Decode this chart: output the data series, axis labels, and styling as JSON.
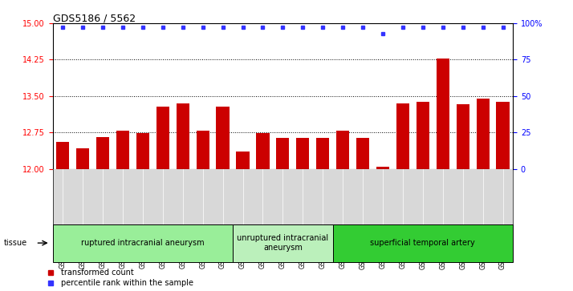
{
  "title": "GDS5186 / 5562",
  "samples": [
    "GSM1306885",
    "GSM1306886",
    "GSM1306887",
    "GSM1306888",
    "GSM1306889",
    "GSM1306890",
    "GSM1306891",
    "GSM1306892",
    "GSM1306893",
    "GSM1306894",
    "GSM1306895",
    "GSM1306896",
    "GSM1306897",
    "GSM1306898",
    "GSM1306899",
    "GSM1306900",
    "GSM1306901",
    "GSM1306902",
    "GSM1306903",
    "GSM1306904",
    "GSM1306905",
    "GSM1306906",
    "GSM1306907"
  ],
  "bar_values": [
    12.55,
    12.42,
    12.65,
    12.78,
    12.73,
    13.28,
    13.35,
    12.78,
    13.28,
    12.35,
    12.73,
    12.63,
    12.63,
    12.63,
    12.78,
    12.63,
    12.05,
    13.35,
    13.38,
    14.27,
    13.33,
    13.45,
    13.38
  ],
  "percentile_right": [
    97,
    97,
    97,
    97,
    97,
    97,
    97,
    97,
    97,
    97,
    97,
    97,
    97,
    97,
    97,
    97,
    93,
    97,
    97,
    97,
    97,
    97,
    97
  ],
  "ylim": [
    12,
    15
  ],
  "yticks": [
    12,
    12.75,
    13.5,
    14.25,
    15
  ],
  "right_yticks": [
    0,
    25,
    50,
    75,
    100
  ],
  "right_ylim": [
    0,
    100
  ],
  "bar_color": "#cc0000",
  "dot_color": "#3333ff",
  "tissue_groups": [
    {
      "label": "ruptured intracranial aneurysm",
      "start": 0,
      "end": 9,
      "color": "#99ee99"
    },
    {
      "label": "unruptured intracranial\naneurysm",
      "start": 9,
      "end": 14,
      "color": "#bbf0bb"
    },
    {
      "label": "superficial temporal artery",
      "start": 14,
      "end": 23,
      "color": "#33cc33"
    }
  ],
  "tissue_label": "tissue",
  "legend_items": [
    {
      "label": "transformed count",
      "color": "#cc0000"
    },
    {
      "label": "percentile rank within the sample",
      "color": "#3333ff"
    }
  ],
  "plot_bg": "#ffffff",
  "xtick_bg": "#d8d8d8",
  "dotted_lines": [
    12.75,
    13.5,
    14.25
  ]
}
